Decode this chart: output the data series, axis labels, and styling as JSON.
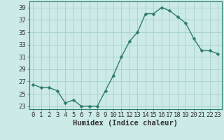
{
  "x": [
    0,
    1,
    2,
    3,
    4,
    5,
    6,
    7,
    8,
    9,
    10,
    11,
    12,
    13,
    14,
    15,
    16,
    17,
    18,
    19,
    20,
    21,
    22,
    23
  ],
  "y": [
    26.5,
    26.0,
    26.0,
    25.5,
    23.5,
    24.0,
    23.0,
    23.0,
    23.0,
    25.5,
    28.0,
    31.0,
    33.5,
    35.0,
    38.0,
    38.0,
    39.0,
    38.5,
    37.5,
    36.5,
    34.0,
    32.0,
    32.0,
    31.5
  ],
  "line_color": "#2d7d6e",
  "marker": "D",
  "marker_size": 2.5,
  "line_width": 1.0,
  "bg_color": "#cceae7",
  "grid_color": "#aad4d0",
  "xlabel": "Humidex (Indice chaleur)",
  "ylabel": "",
  "xlim": [
    -0.5,
    23.5
  ],
  "ylim": [
    22.5,
    40
  ],
  "yticks": [
    23,
    25,
    27,
    29,
    31,
    33,
    35,
    37,
    39
  ],
  "xticks": [
    0,
    1,
    2,
    3,
    4,
    5,
    6,
    7,
    8,
    9,
    10,
    11,
    12,
    13,
    14,
    15,
    16,
    17,
    18,
    19,
    20,
    21,
    22,
    23
  ],
  "xlabel_fontsize": 7.5,
  "tick_fontsize": 6.5,
  "spine_color": "#2d7d6e"
}
